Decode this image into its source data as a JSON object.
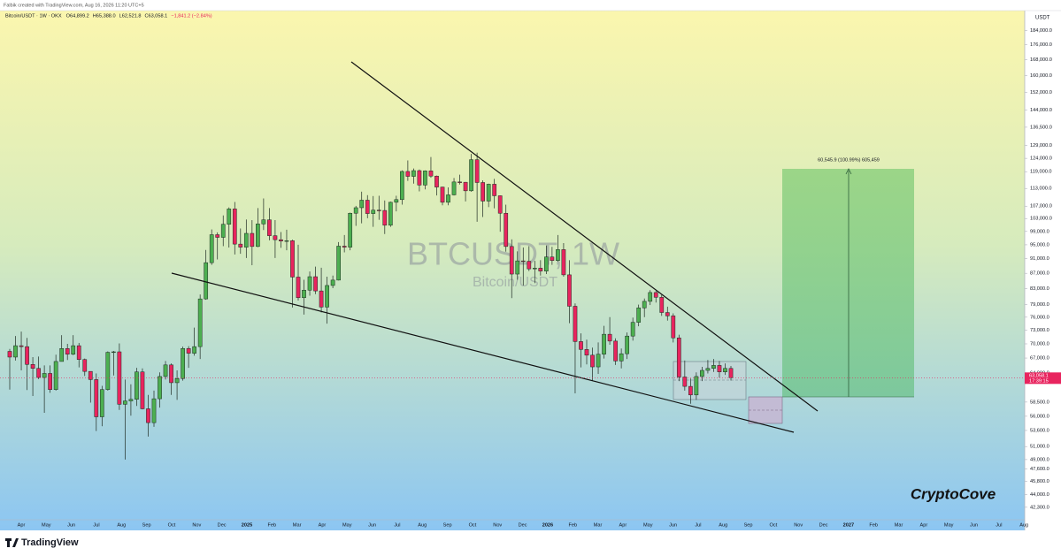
{
  "chart_data": {
    "type": "candlestick",
    "header": "Falbik created with TradingView.com, Aug 16, 2026 11:20 UTC+5",
    "symbol": "Bitcoin/USDT · 1W · OKX",
    "ohlc_labels": [
      "O64,899.2",
      "H65,388.0",
      "L62,521.8",
      "C63,058.1",
      "−1,841.2 (−2.84%)"
    ],
    "watermark": "BTCUSDT, 1W",
    "watermark_subtitle": "Bitcoin/USDT",
    "currency": "USDT",
    "brand": "CryptoCove",
    "footer": "TradingView",
    "measure_label": "60,545.9 (100.99%) 605,459",
    "last_price_label": "63,058.1",
    "countdown": "17:39:15",
    "up_color": "#4caf50",
    "down_color": "#e8245e",
    "log_scale": true,
    "grid": false,
    "x_labels": [
      "Apr",
      "May",
      "Jun",
      "Jul",
      "Aug",
      "Sep",
      "Oct",
      "Nov",
      "Dec",
      "2025",
      "Feb",
      "Mar",
      "Apr",
      "May",
      "Jun",
      "Jul",
      "Aug",
      "Sep",
      "Oct",
      "Nov",
      "Dec",
      "2026",
      "Feb",
      "Mar",
      "Apr",
      "May",
      "Jun",
      "Jul",
      "Aug",
      "Sep",
      "Oct",
      "Nov",
      "Dec",
      "2027",
      "Feb",
      "Mar",
      "Apr",
      "May",
      "Jun",
      "Jul",
      "Aug"
    ],
    "ylim": [
      40700,
      195000
    ],
    "yticks": [
      {
        "value": 184000,
        "label": "184,000.0"
      },
      {
        "value": 176000,
        "label": "176,000.0"
      },
      {
        "value": 168000,
        "label": "168,000.0"
      },
      {
        "value": 160000,
        "label": "160,000.0"
      },
      {
        "value": 152000,
        "label": "152,000.0"
      },
      {
        "value": 144000,
        "label": "144,000.0"
      },
      {
        "value": 136500,
        "label": "136,500.0"
      },
      {
        "value": 129000,
        "label": "129,000.0"
      },
      {
        "value": 124000,
        "label": "124,000.0"
      },
      {
        "value": 119000,
        "label": "119,000.0"
      },
      {
        "value": 113000,
        "label": "113,000.0"
      },
      {
        "value": 107000,
        "label": "107,000.0"
      },
      {
        "value": 103000,
        "label": "103,000.0"
      },
      {
        "value": 99000,
        "label": "99,000.0"
      },
      {
        "value": 95000,
        "label": "95,000.0"
      },
      {
        "value": 91000,
        "label": "91,000.0"
      },
      {
        "value": 87000,
        "label": "87,000.0"
      },
      {
        "value": 83000,
        "label": "83,000.0"
      },
      {
        "value": 79000,
        "label": "79,000.0"
      },
      {
        "value": 76000,
        "label": "76,000.0"
      },
      {
        "value": 73000,
        "label": "73,000.0"
      },
      {
        "value": 70000,
        "label": "70,000.0"
      },
      {
        "value": 67000,
        "label": "67,000.0"
      },
      {
        "value": 64000,
        "label": "64,000.0"
      },
      {
        "value": 58500,
        "label": "58,500.0"
      },
      {
        "value": 56000,
        "label": "56,000.0"
      },
      {
        "value": 53600,
        "label": "53,600.0"
      },
      {
        "value": 51000,
        "label": "51,000.0"
      },
      {
        "value": 49000,
        "label": "49,000.0"
      },
      {
        "value": 47600,
        "label": "47,600.0"
      },
      {
        "value": 45800,
        "label": "45,800.0"
      },
      {
        "value": 44000,
        "label": "44,000.0"
      },
      {
        "value": 42300,
        "label": "42,300.0"
      }
    ],
    "open": [
      68400,
      67200,
      69600,
      69400,
      65700,
      64900,
      63100,
      63900,
      60800,
      66300,
      69000,
      67800,
      69600,
      66700,
      64300,
      62700,
      55900,
      60800,
      68200,
      68300,
      58100,
      58700,
      59000,
      64200,
      57300,
      54900,
      59100,
      63300,
      65600,
      62100,
      62900,
      69000,
      68000,
      69400,
      80400,
      89900,
      98000,
      97200,
      101200,
      106100,
      95200,
      94300,
      98400,
      94500,
      101300,
      102600,
      97700,
      96500,
      96100,
      96200,
      86000,
      80700,
      82600,
      86100,
      82400,
      78400,
      83800,
      85200,
      94600,
      94300,
      104700,
      106500,
      109000,
      104600,
      105700,
      105600,
      100900,
      108300,
      109200,
      119100,
      117300,
      119400,
      114200,
      119300,
      117400,
      113500,
      108300,
      110800,
      115300,
      115200,
      112200,
      123500,
      115100,
      108700,
      114500,
      110500,
      104700,
      94500,
      86800,
      90400,
      90300,
      88200,
      88400,
      87600,
      91500,
      90500,
      93600,
      86600,
      78600,
      70500,
      68800,
      67600,
      65200,
      67800,
      72100,
      70600,
      66400,
      67900,
      71700,
      74800,
      78200,
      79800,
      82000,
      80800,
      77100,
      76300,
      71300,
      63200,
      61400,
      59800,
      63300,
      64500,
      64900,
      65500,
      64200,
      64899.2
    ],
    "high": [
      68900,
      71700,
      72700,
      71300,
      67200,
      67300,
      65500,
      65500,
      67700,
      71900,
      70000,
      71900,
      70200,
      66900,
      64300,
      63900,
      61500,
      68400,
      68500,
      70100,
      62700,
      61800,
      65000,
      64900,
      59800,
      60600,
      64100,
      66400,
      65900,
      64500,
      69400,
      69500,
      73600,
      81500,
      93500,
      99600,
      98700,
      104000,
      106600,
      108400,
      99900,
      102700,
      102500,
      106400,
      109600,
      106400,
      102500,
      98800,
      99500,
      96500,
      95000,
      85300,
      87500,
      88800,
      88500,
      86100,
      86400,
      95800,
      97900,
      104900,
      107100,
      111900,
      110700,
      110400,
      110500,
      108900,
      108500,
      110500,
      119500,
      123200,
      120200,
      119800,
      119500,
      124500,
      117600,
      113600,
      113400,
      116700,
      117900,
      115300,
      125700,
      126200,
      115900,
      114700,
      116400,
      110600,
      107500,
      96600,
      93100,
      94200,
      94600,
      90400,
      90600,
      94800,
      94400,
      97900,
      95500,
      90600,
      79300,
      72300,
      70900,
      69200,
      70300,
      74000,
      76000,
      71200,
      69000,
      72500,
      75900,
      79000,
      80500,
      82600,
      82400,
      81400,
      78500,
      76900,
      72000,
      66500,
      62900,
      64100,
      65200,
      66600,
      66800,
      66400,
      65900,
      65388
    ],
    "low": [
      60800,
      66500,
      64500,
      60700,
      59600,
      62800,
      56600,
      60200,
      60600,
      66300,
      66600,
      67600,
      65100,
      63400,
      58400,
      53500,
      54300,
      60600,
      63500,
      57100,
      49000,
      56100,
      57800,
      57200,
      52600,
      54200,
      57500,
      62700,
      59800,
      58900,
      62500,
      65000,
      67500,
      66800,
      80200,
      89300,
      90800,
      94600,
      94200,
      92200,
      92400,
      91200,
      89200,
      94300,
      99400,
      96300,
      91200,
      94100,
      93400,
      78300,
      80000,
      76600,
      81200,
      81600,
      77100,
      74500,
      83100,
      85100,
      92800,
      93400,
      100700,
      101500,
      103100,
      100400,
      102600,
      98200,
      100400,
      105300,
      107500,
      115700,
      114700,
      112000,
      112700,
      116800,
      110600,
      107300,
      107300,
      110600,
      114400,
      108600,
      111900,
      102000,
      103500,
      106700,
      106300,
      98900,
      93000,
      80600,
      85300,
      83800,
      87600,
      84400,
      86400,
      86800,
      89300,
      90200,
      86100,
      74600,
      60100,
      65100,
      65700,
      62500,
      63800,
      66900,
      69800,
      65600,
      64900,
      66800,
      70700,
      73900,
      76000,
      78900,
      79500,
      76300,
      75200,
      70300,
      62400,
      60600,
      58200,
      58900,
      62400,
      63900,
      64200,
      63100,
      63600,
      62521.8
    ],
    "close": [
      67200,
      69600,
      69400,
      65700,
      64900,
      63100,
      63900,
      60800,
      66300,
      69000,
      67800,
      69600,
      66700,
      64300,
      62700,
      55900,
      60800,
      68200,
      68300,
      58100,
      58700,
      59000,
      64200,
      57300,
      54900,
      59100,
      63300,
      65600,
      62100,
      62900,
      69000,
      68000,
      69400,
      80400,
      89900,
      98000,
      97200,
      101200,
      106100,
      95200,
      94300,
      98400,
      94500,
      101300,
      102600,
      97700,
      96500,
      96100,
      96200,
      86000,
      80700,
      82600,
      86100,
      82400,
      78400,
      83800,
      85200,
      94600,
      94300,
      104700,
      106500,
      109000,
      104600,
      105700,
      105600,
      100900,
      108300,
      109200,
      119100,
      117300,
      119400,
      114200,
      119300,
      117400,
      113500,
      108300,
      110800,
      115300,
      115200,
      112200,
      123500,
      115100,
      108700,
      114500,
      110500,
      104700,
      94500,
      86800,
      90400,
      90300,
      88200,
      88400,
      87600,
      91500,
      90500,
      93600,
      86600,
      78600,
      70500,
      68800,
      67600,
      65200,
      67800,
      72100,
      70600,
      66400,
      67900,
      71700,
      74800,
      78200,
      79800,
      82000,
      80800,
      77100,
      76300,
      71300,
      63200,
      61400,
      59800,
      63300,
      64500,
      64900,
      65500,
      64200,
      64899.2,
      63058.1
    ]
  }
}
